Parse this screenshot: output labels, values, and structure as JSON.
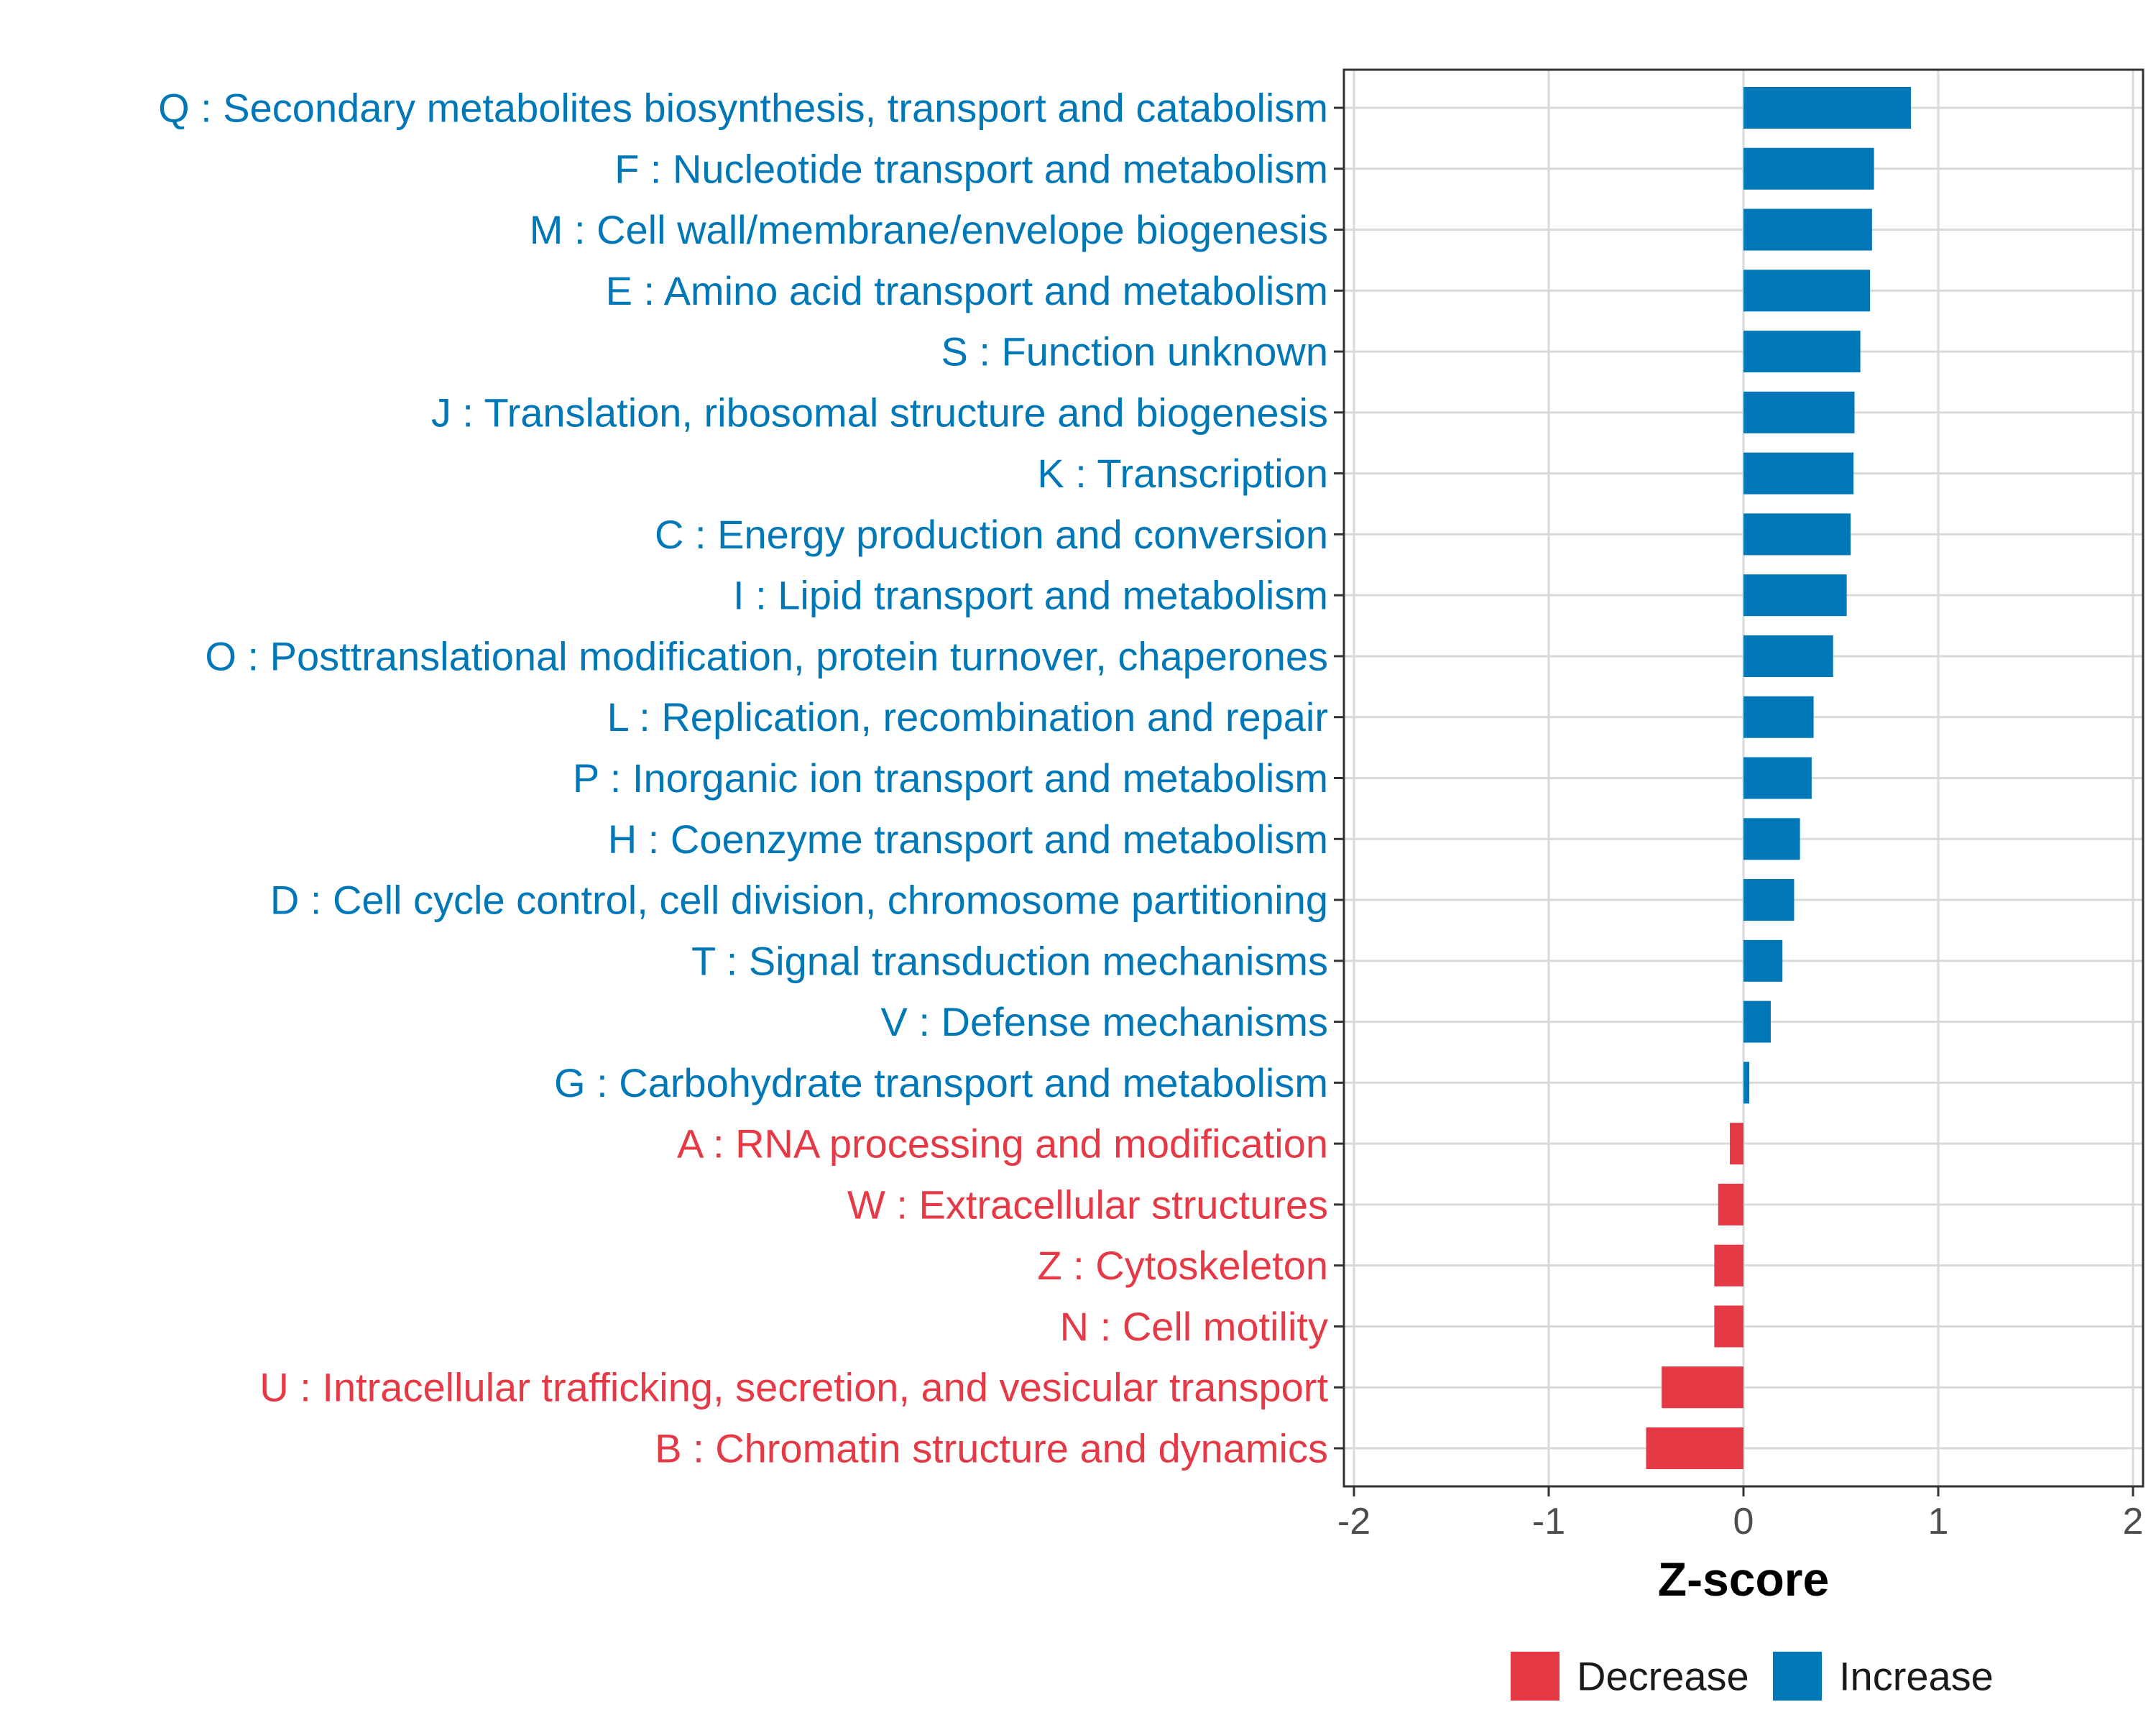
{
  "chart_data": {
    "type": "bar",
    "orientation": "horizontal",
    "xlabel": "Z-score",
    "xlim": [
      -2,
      2
    ],
    "x_ticks": [
      -2,
      -1,
      0,
      1,
      2
    ],
    "x_tick_labels": [
      "-2",
      "-1",
      "0",
      "1",
      "2"
    ],
    "grid": true,
    "legend_position": "bottom",
    "colors": {
      "Decrease": "#E63946",
      "Increase": "#0077B6"
    },
    "legend": [
      {
        "label": "Decrease",
        "color": "#E63946"
      },
      {
        "label": "Increase",
        "color": "#0077B6"
      }
    ],
    "categories": [
      {
        "label": "Q : Secondary metabolites biosynthesis, transport and catabolism",
        "value": 0.86,
        "direction": "Increase"
      },
      {
        "label": "F : Nucleotide transport and metabolism",
        "value": 0.67,
        "direction": "Increase"
      },
      {
        "label": "M : Cell wall/membrane/envelope biogenesis",
        "value": 0.66,
        "direction": "Increase"
      },
      {
        "label": "E : Amino acid transport and metabolism",
        "value": 0.65,
        "direction": "Increase"
      },
      {
        "label": "S : Function unknown",
        "value": 0.6,
        "direction": "Increase"
      },
      {
        "label": "J : Translation, ribosomal structure and biogenesis",
        "value": 0.57,
        "direction": "Increase"
      },
      {
        "label": "K : Transcription",
        "value": 0.565,
        "direction": "Increase"
      },
      {
        "label": "C : Energy production and conversion",
        "value": 0.55,
        "direction": "Increase"
      },
      {
        "label": "I : Lipid transport and metabolism",
        "value": 0.53,
        "direction": "Increase"
      },
      {
        "label": "O : Posttranslational modification, protein turnover, chaperones",
        "value": 0.46,
        "direction": "Increase"
      },
      {
        "label": "L : Replication, recombination and repair",
        "value": 0.36,
        "direction": "Increase"
      },
      {
        "label": "P : Inorganic ion transport and metabolism",
        "value": 0.35,
        "direction": "Increase"
      },
      {
        "label": "H : Coenzyme transport and metabolism",
        "value": 0.29,
        "direction": "Increase"
      },
      {
        "label": "D : Cell cycle control, cell division, chromosome partitioning",
        "value": 0.26,
        "direction": "Increase"
      },
      {
        "label": "T : Signal transduction mechanisms",
        "value": 0.2,
        "direction": "Increase"
      },
      {
        "label": "V : Defense mechanisms",
        "value": 0.14,
        "direction": "Increase"
      },
      {
        "label": "G : Carbohydrate transport and metabolism",
        "value": 0.03,
        "direction": "Increase"
      },
      {
        "label": "A : RNA processing and modification",
        "value": -0.07,
        "direction": "Decrease"
      },
      {
        "label": "W : Extracellular structures",
        "value": -0.13,
        "direction": "Decrease"
      },
      {
        "label": "Z : Cytoskeleton",
        "value": -0.15,
        "direction": "Decrease"
      },
      {
        "label": "N : Cell motility",
        "value": -0.15,
        "direction": "Decrease"
      },
      {
        "label": "U : Intracellular trafficking, secretion, and vesicular transport",
        "value": -0.42,
        "direction": "Decrease"
      },
      {
        "label": "B : Chromatin structure and dynamics",
        "value": -0.5,
        "direction": "Decrease"
      }
    ]
  }
}
